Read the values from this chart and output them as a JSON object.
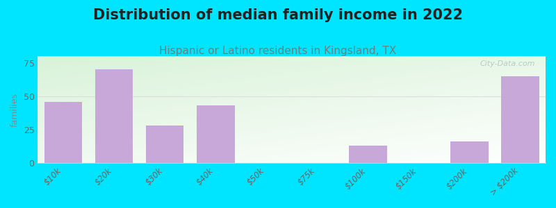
{
  "title": "Distribution of median family income in 2022",
  "subtitle": "Hispanic or Latino residents in Kingsland, TX",
  "categories": [
    "$10k",
    "$20k",
    "$30k",
    "$40k",
    "$50k",
    "$75k",
    "$100k",
    "$150k",
    "$200k",
    "> $200k"
  ],
  "values": [
    46,
    70,
    28,
    43,
    0,
    0,
    13,
    0,
    16,
    65
  ],
  "bar_color": "#c8a8d8",
  "background_outer": "#00e5ff",
  "ylabel": "families",
  "ylim": [
    0,
    80
  ],
  "yticks": [
    0,
    25,
    50,
    75
  ],
  "title_fontsize": 15,
  "subtitle_fontsize": 11,
  "title_color": "#222222",
  "subtitle_color": "#6b8080",
  "axis_label_color": "#888888",
  "tick_label_color": "#666666",
  "watermark": "City-Data.com",
  "grid_color": "#dddddd"
}
